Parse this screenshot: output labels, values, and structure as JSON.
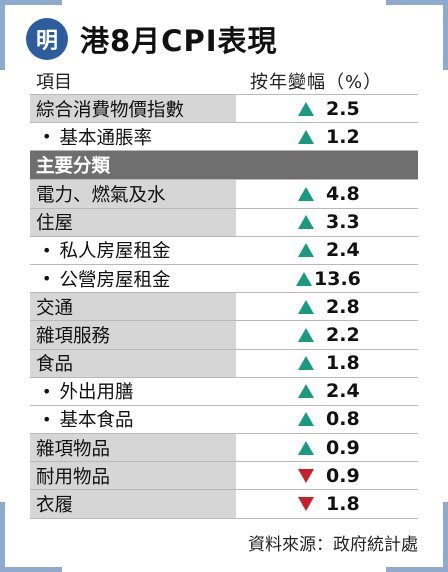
{
  "logo": "明",
  "title": "港8月CPI表現",
  "columns": {
    "item": "項目",
    "change": "按年變幅（%）"
  },
  "rows_top": [
    {
      "name": "綜合消費物價指數",
      "dir": "up",
      "value": "2.5",
      "sub": false
    },
    {
      "name": "基本通脹率",
      "dir": "up",
      "value": "1.2",
      "sub": true
    }
  ],
  "section": "主要分類",
  "rows_main": [
    {
      "name": "電力、燃氣及水",
      "dir": "up",
      "value": "4.8",
      "sub": false
    },
    {
      "name": "住屋",
      "dir": "up",
      "value": "3.3",
      "sub": false
    },
    {
      "name": "私人房屋租金",
      "dir": "up",
      "value": "2.4",
      "sub": true
    },
    {
      "name": "公營房屋租金",
      "dir": "up",
      "value": "13.6",
      "sub": true
    },
    {
      "name": "交通",
      "dir": "up",
      "value": "2.8",
      "sub": false
    },
    {
      "name": "雜項服務",
      "dir": "up",
      "value": "2.2",
      "sub": false
    },
    {
      "name": "食品",
      "dir": "up",
      "value": "1.8",
      "sub": false
    },
    {
      "name": "外出用膳",
      "dir": "up",
      "value": "2.4",
      "sub": true
    },
    {
      "name": "基本食品",
      "dir": "up",
      "value": "0.8",
      "sub": true
    },
    {
      "name": "雜項物品",
      "dir": "up",
      "value": "0.9",
      "sub": false
    },
    {
      "name": "耐用物品",
      "dir": "down",
      "value": "0.9",
      "sub": false
    },
    {
      "name": "衣履",
      "dir": "down",
      "value": "1.8",
      "sub": false
    }
  ],
  "source": "資料來源：政府統計處",
  "colors": {
    "up": "#1a9a80",
    "down": "#c7202a",
    "logo": "#2d5d9c",
    "section": "#6f6f6f"
  }
}
